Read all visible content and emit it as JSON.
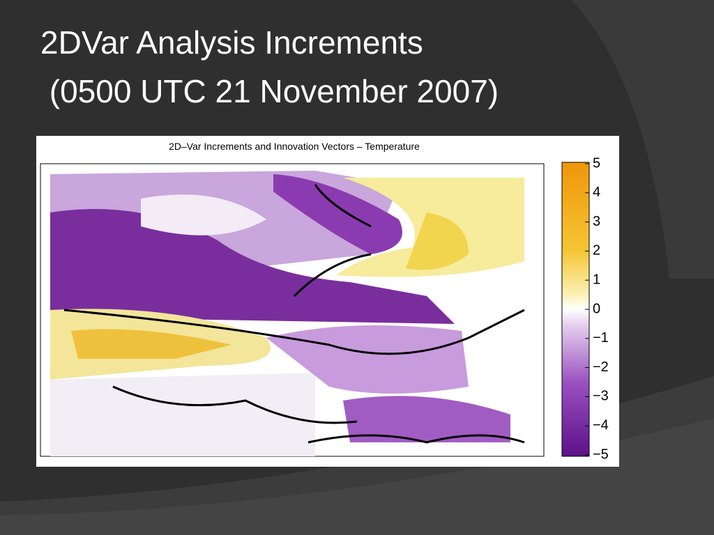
{
  "slide": {
    "title_lines": [
      "2DVar Analysis Increments",
      " (0500 UTC 21 November 2007)"
    ]
  },
  "figure": {
    "title": "2D–Var Increments and Innovation Vectors – Temperature",
    "colorbar": {
      "lim": [
        -5,
        5
      ],
      "ticks": [
        5,
        4,
        3,
        2,
        1,
        0,
        {
          "value": -1,
          "label": "−1"
        },
        {
          "value": -2,
          "label": "−2"
        },
        {
          "value": -3,
          "label": "−3"
        },
        {
          "value": -4,
          "label": "−4"
        },
        {
          "value": -5,
          "label": "−5"
        }
      ]
    }
  }
}
